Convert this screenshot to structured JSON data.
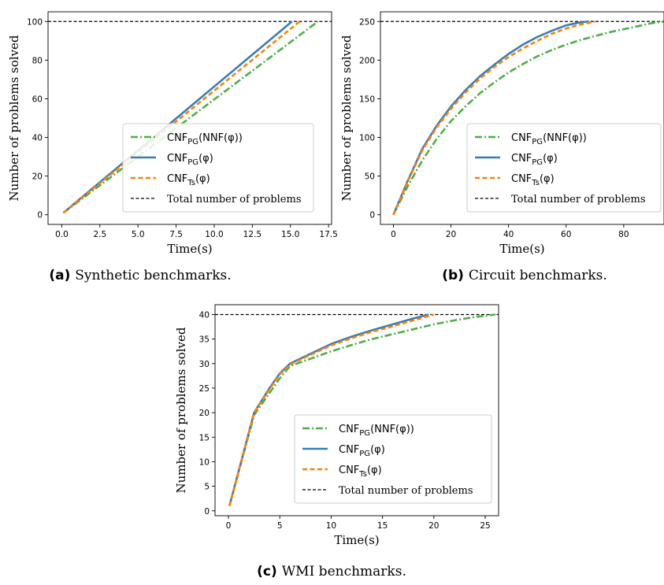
{
  "colors": {
    "nnf": "#4daf4a",
    "pg": "#377eb8",
    "ts": "#ff7f00",
    "total": "#000000"
  },
  "legend_labels": [
    {
      "key": "nnf",
      "main": "CNF",
      "sub": "PG",
      "rest": "(NNF(φ))"
    },
    {
      "key": "pg",
      "main": "CNF",
      "sub": "PG",
      "rest": "(φ)"
    },
    {
      "key": "ts",
      "main": "CNF",
      "sub": "Ts",
      "rest": "(φ)"
    },
    {
      "key": "total",
      "text": "Total number of problems"
    }
  ],
  "chart_data": [
    {
      "type": "line",
      "caption_label": "(a)",
      "caption_text": "Synthetic benchmarks.",
      "xlabel": "Time(s)",
      "ylabel": "Number of problems solved",
      "xlim": [
        -0.9,
        17.7
      ],
      "ylim": [
        -5,
        105
      ],
      "xticks": [
        0.0,
        2.5,
        5.0,
        7.5,
        10.0,
        12.5,
        15.0,
        17.5
      ],
      "xtick_labels": [
        "0.0",
        "2.5",
        "5.0",
        "7.5",
        "10.0",
        "12.5",
        "15.0",
        "17.5"
      ],
      "yticks": [
        0,
        20,
        40,
        60,
        80,
        100
      ],
      "ytick_labels": [
        "0",
        "20",
        "40",
        "60",
        "80",
        "100"
      ],
      "total": 100,
      "legend_position": "center-right",
      "series": [
        {
          "key": "nnf",
          "x": [
            0.1,
            16.8
          ],
          "y": [
            1,
            100
          ]
        },
        {
          "key": "pg",
          "x": [
            0.1,
            15.1
          ],
          "y": [
            1,
            100
          ]
        },
        {
          "key": "ts",
          "x": [
            0.1,
            15.6
          ],
          "y": [
            1,
            100
          ]
        }
      ]
    },
    {
      "type": "line",
      "caption_label": "(b)",
      "caption_text": "Circuit benchmarks.",
      "xlabel": "Time(s)",
      "ylabel": "Number of problems solved",
      "xlim": [
        -4.5,
        94
      ],
      "ylim": [
        -12.5,
        262.5
      ],
      "xticks": [
        0,
        20,
        40,
        60,
        80
      ],
      "xtick_labels": [
        "0",
        "20",
        "40",
        "60",
        "80"
      ],
      "yticks": [
        0,
        50,
        100,
        150,
        200,
        250
      ],
      "ytick_labels": [
        "0",
        "50",
        "100",
        "150",
        "200",
        "250"
      ],
      "total": 250,
      "legend_position": "lower-right",
      "series": [
        {
          "key": "nnf",
          "x": [
            0,
            5,
            10,
            15,
            20,
            25,
            30,
            35,
            40,
            45,
            50,
            55,
            60,
            65,
            70,
            75,
            80,
            85,
            90,
            94
          ],
          "y": [
            0,
            37,
            70,
            98,
            121,
            140,
            157,
            171,
            184,
            195,
            205,
            213,
            220,
            226,
            231,
            236,
            240,
            244,
            248,
            250
          ]
        },
        {
          "key": "pg",
          "x": [
            0,
            5,
            10,
            15,
            20,
            25,
            30,
            35,
            40,
            45,
            50,
            55,
            60,
            65,
            68
          ],
          "y": [
            0,
            44,
            85,
            115,
            140,
            161,
            179,
            194,
            208,
            220,
            230,
            238,
            245,
            249,
            250
          ]
        },
        {
          "key": "ts",
          "x": [
            0,
            5,
            10,
            15,
            20,
            25,
            30,
            35,
            40,
            45,
            50,
            55,
            60,
            65,
            70
          ],
          "y": [
            0,
            43,
            83,
            113,
            137,
            158,
            176,
            191,
            204,
            215,
            225,
            234,
            241,
            246,
            250
          ]
        }
      ]
    },
    {
      "type": "line",
      "caption_label": "(c)",
      "caption_text": "WMI benchmarks.",
      "xlabel": "Time(s)",
      "ylabel": "Number of problems solved",
      "xlim": [
        -1.3,
        26.3
      ],
      "ylim": [
        -1,
        42
      ],
      "xticks": [
        0,
        5,
        10,
        15,
        20,
        25
      ],
      "xtick_labels": [
        "0",
        "5",
        "10",
        "15",
        "20",
        "25"
      ],
      "yticks": [
        0,
        5,
        10,
        15,
        20,
        25,
        30,
        35,
        40
      ],
      "ytick_labels": [
        "0",
        "5",
        "10",
        "15",
        "20",
        "25",
        "30",
        "35",
        "40"
      ],
      "total": 40,
      "legend_position": "lower-right",
      "series": [
        {
          "key": "nnf",
          "x": [
            0.1,
            2.5,
            4,
            5,
            6,
            8,
            10,
            12,
            14,
            16,
            18,
            20,
            22,
            24,
            26
          ],
          "y": [
            1,
            19.5,
            24,
            27,
            29.5,
            31,
            32.5,
            33.8,
            35,
            36,
            37,
            38,
            38.8,
            39.5,
            40
          ]
        },
        {
          "key": "pg",
          "x": [
            0.1,
            2.5,
            4,
            5,
            6,
            8,
            10,
            12,
            14,
            16,
            18,
            19.5
          ],
          "y": [
            1,
            20,
            25,
            28,
            30,
            32,
            34,
            35.5,
            36.8,
            38,
            39.2,
            40
          ]
        },
        {
          "key": "ts",
          "x": [
            0.1,
            2.5,
            4,
            5,
            6,
            8,
            10,
            12,
            14,
            16,
            18,
            20
          ],
          "y": [
            1,
            20,
            24.8,
            27.8,
            29.8,
            31.8,
            33.7,
            35.2,
            36.5,
            37.6,
            38.8,
            40
          ]
        }
      ]
    }
  ]
}
